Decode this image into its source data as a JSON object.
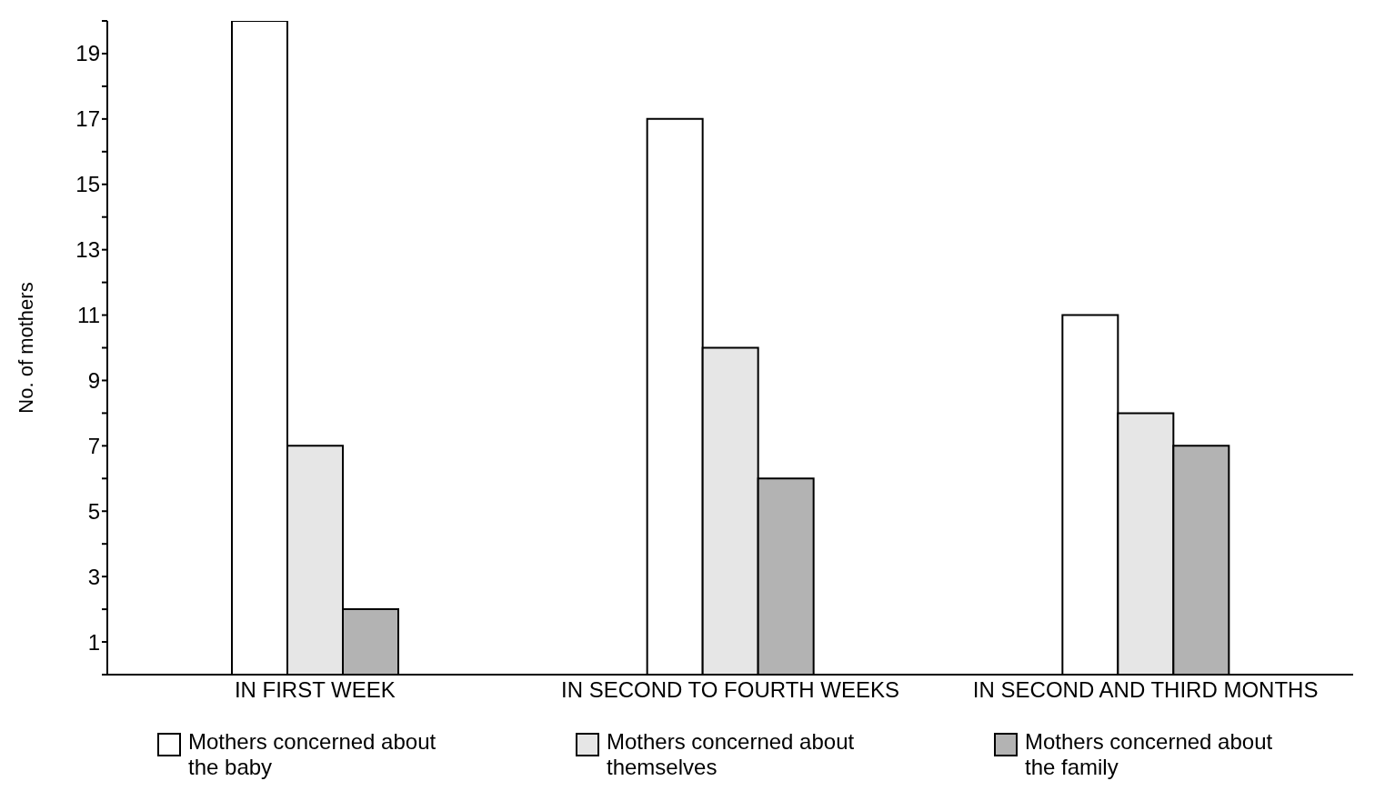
{
  "chart_data": {
    "type": "bar",
    "ylabel": "No. of mothers",
    "categories": [
      "IN FIRST WEEK",
      "IN SECOND TO FOURTH WEEKS",
      "IN SECOND AND THIRD MONTHS"
    ],
    "series": [
      {
        "name": "Mothers concerned about the baby",
        "color": "#ffffff",
        "values": [
          20,
          17,
          11
        ]
      },
      {
        "name": "Mothers concerned about themselves",
        "color": "#e6e6e6",
        "values": [
          7,
          10,
          8
        ]
      },
      {
        "name": "Mothers concerned about the  family",
        "color": "#b3b3b3",
        "values": [
          2,
          6,
          7
        ]
      }
    ],
    "ylim": [
      0,
      20
    ],
    "yticks": [
      {
        "value": 0,
        "label": null
      },
      1,
      {
        "value": 2,
        "label": null
      },
      3,
      {
        "value": 4,
        "label": null
      },
      5,
      {
        "value": 6,
        "label": null
      },
      7,
      {
        "value": 8,
        "label": null
      },
      9,
      {
        "value": 10,
        "label": null
      },
      11,
      {
        "value": 12,
        "label": null
      },
      13,
      {
        "value": 14,
        "label": null
      },
      15,
      {
        "value": 16,
        "label": null
      },
      17,
      {
        "value": 18,
        "label": null
      },
      19,
      {
        "value": 20,
        "label": null
      }
    ],
    "grid": false,
    "legend": "bottom"
  }
}
